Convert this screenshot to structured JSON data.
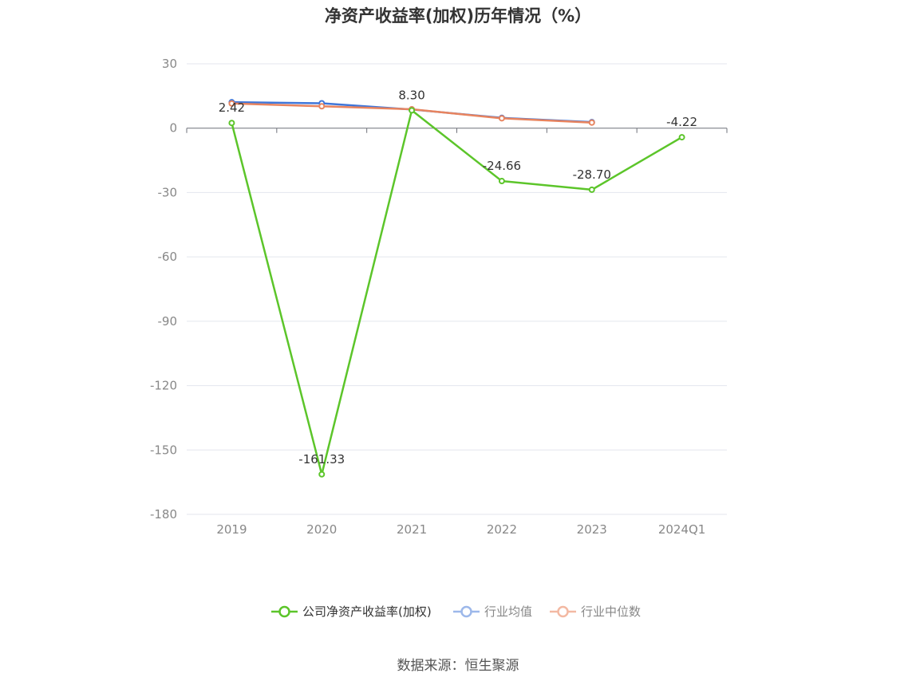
{
  "chart_data": {
    "type": "line",
    "title": "净资产收益率(加权)历年情况（%）",
    "source": "数据来源：恒生聚源",
    "categories": [
      "2019",
      "2020",
      "2021",
      "2022",
      "2023",
      "2024Q1"
    ],
    "ylim": [
      -180,
      30
    ],
    "yticks": [
      30,
      0,
      -30,
      -60,
      -90,
      -120,
      -150,
      -180
    ],
    "grid": true,
    "legend_position": "bottom-center",
    "series": [
      {
        "name": "公司净资产收益率(加权)",
        "color": "#5cc52a",
        "values": [
          2.42,
          -161.33,
          8.3,
          -24.66,
          -28.7,
          -4.22
        ],
        "labels": [
          "2.42",
          "-161.33",
          "8.30",
          "-24.66",
          "-28.70",
          "-4.22"
        ]
      },
      {
        "name": "行业均值",
        "color": "#3f76d9",
        "legend_color": "#9db8ea",
        "values": [
          12.1,
          11.6,
          8.7,
          4.8,
          2.8,
          null
        ]
      },
      {
        "name": "行业中位数",
        "color": "#e8845f",
        "legend_color": "#f3b9a3",
        "values": [
          11.5,
          10.2,
          8.8,
          4.6,
          2.6,
          null
        ]
      }
    ]
  }
}
